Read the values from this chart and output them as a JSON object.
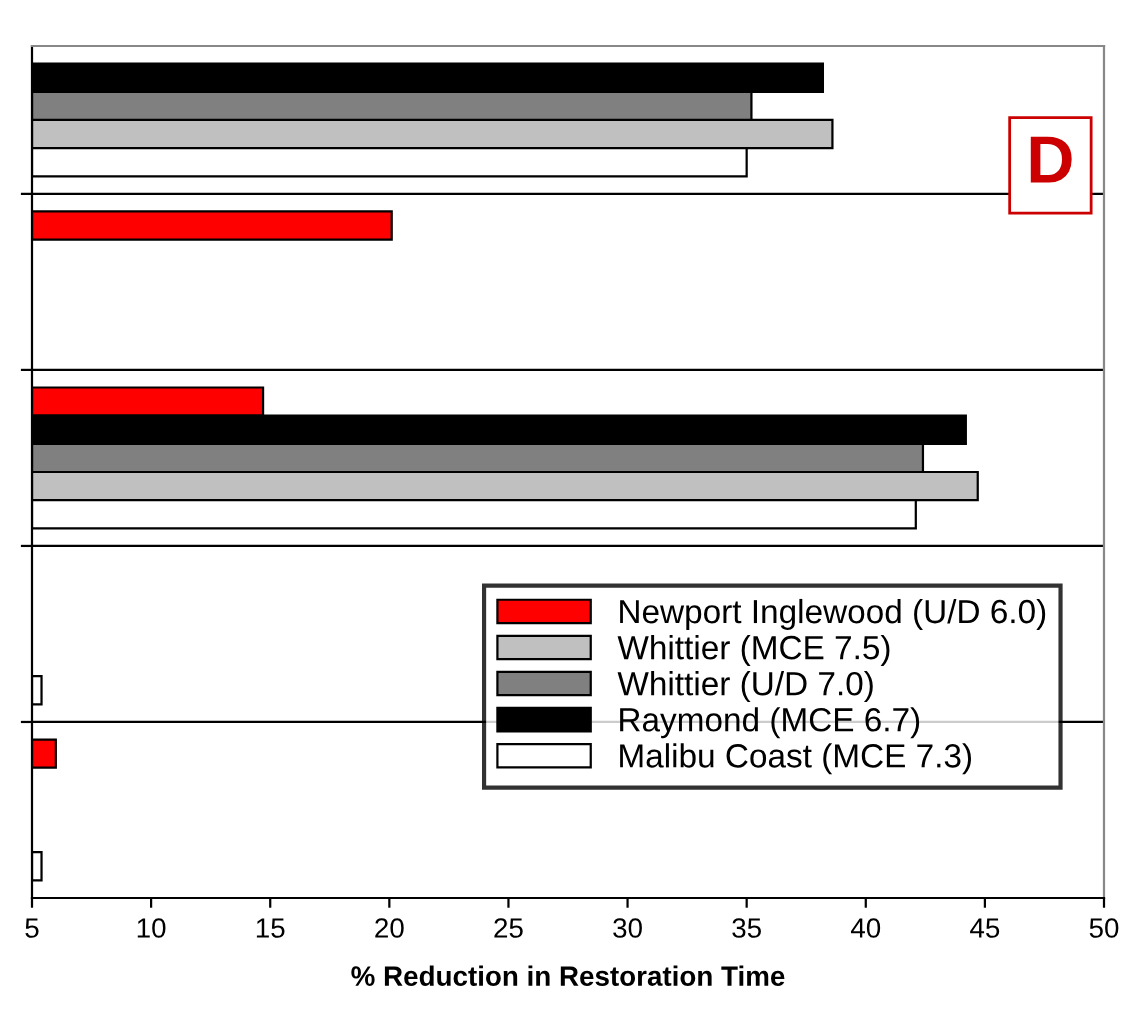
{
  "chart_data": {
    "type": "bar",
    "orientation": "horizontal",
    "xlabel": "% Reduction in Restoration Time",
    "categories": [
      null,
      null,
      null,
      null,
      null
    ],
    "series": [
      {
        "name": "Newport Inglewood (U/D 6.0)",
        "color": "#ff0000",
        "values": [
          null,
          20.1,
          14.7,
          null,
          6.0
        ]
      },
      {
        "name": "Whittier (MCE 7.5)",
        "color": "#c0c0c0",
        "values": [
          38.6,
          null,
          44.7,
          null,
          null
        ]
      },
      {
        "name": "Whittier (U/D 7.0)",
        "color": "#808080",
        "values": [
          35.2,
          null,
          42.4,
          null,
          null
        ]
      },
      {
        "name": "Raymond (MCE 6.7)",
        "color": "#000000",
        "values": [
          38.2,
          null,
          44.2,
          null,
          null
        ]
      },
      {
        "name": "Malibu Coast (MCE 7.3)",
        "color": "#ffffff",
        "values": [
          35.0,
          null,
          42.1,
          5.4,
          5.4
        ]
      }
    ],
    "xlim": [
      5,
      50
    ],
    "xticks": [
      5,
      10,
      15,
      20,
      25,
      30,
      35,
      40,
      45,
      50
    ],
    "grid": "y",
    "legend": "bottom right",
    "annotations": [
      "D"
    ]
  }
}
